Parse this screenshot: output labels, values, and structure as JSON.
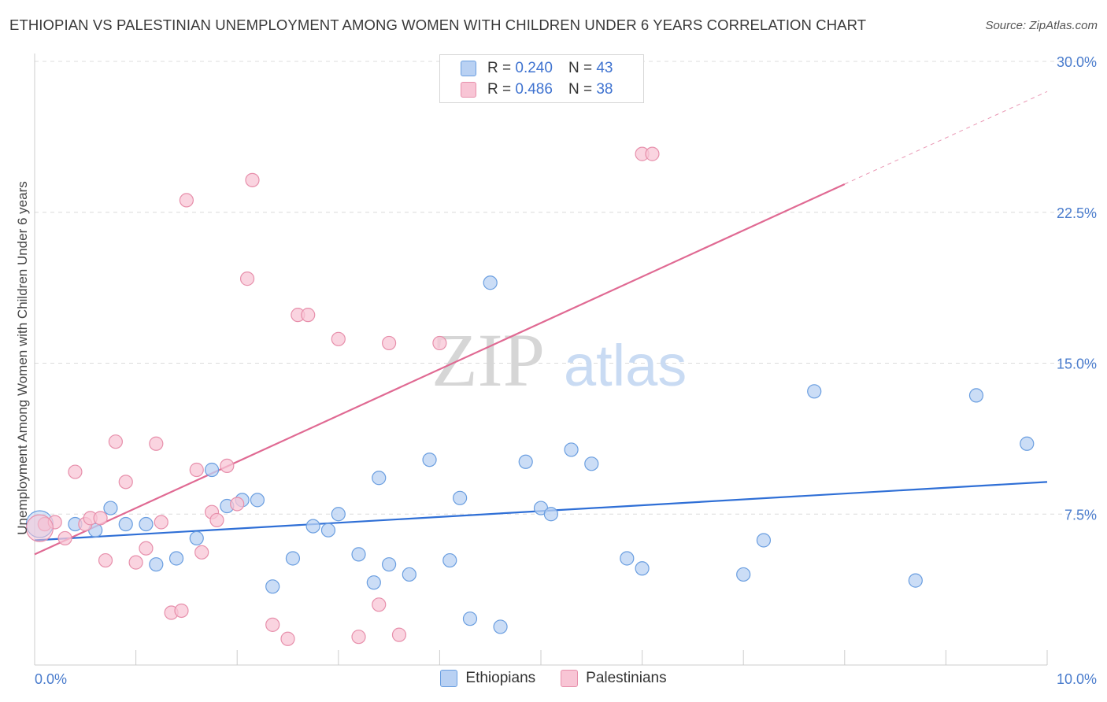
{
  "title": "ETHIOPIAN VS PALESTINIAN UNEMPLOYMENT AMONG WOMEN WITH CHILDREN UNDER 6 YEARS CORRELATION CHART",
  "source": "Source: ZipAtlas.com",
  "watermark": {
    "zip": "ZIP",
    "atlas": "atlas"
  },
  "legend": {
    "r_label": "R =",
    "n_label": "N =",
    "rows": [
      {
        "r": "0.240",
        "n": "43"
      },
      {
        "r": "0.486",
        "n": "38"
      }
    ]
  },
  "colors": {
    "blue_fill": "#b9d1f3",
    "blue_stroke": "#6a9ee0",
    "blue_line": "#2f6fd6",
    "pink_fill": "#f8c5d5",
    "pink_stroke": "#e78fab",
    "pink_line": "#e06a93"
  },
  "chart_data": {
    "type": "scatter",
    "title": "ETHIOPIAN VS PALESTINIAN UNEMPLOYMENT AMONG WOMEN WITH CHILDREN UNDER 6 YEARS CORRELATION CHART",
    "xlabel": "",
    "ylabel": "Unemployment Among Women with Children Under 6 years",
    "xlim": [
      0,
      10
    ],
    "ylim": [
      0,
      30
    ],
    "x_ticks": [
      "0.0%",
      "10.0%"
    ],
    "y_ticks": [
      "7.5%",
      "15.0%",
      "22.5%",
      "30.0%"
    ],
    "y_tick_values": [
      7.5,
      15.0,
      22.5,
      30.0
    ],
    "grid": true,
    "legend_position": "bottom",
    "series": [
      {
        "name": "Ethiopians",
        "color": "#6a9ee0",
        "trend": {
          "x0": 0.0,
          "y0": 6.2,
          "x1": 10.0,
          "y1": 9.1
        },
        "points": [
          [
            0.1,
            7.0
          ],
          [
            0.4,
            7.0
          ],
          [
            0.6,
            6.7
          ],
          [
            0.75,
            7.8
          ],
          [
            0.9,
            7.0
          ],
          [
            1.1,
            7.0
          ],
          [
            1.2,
            5.0
          ],
          [
            1.4,
            5.3
          ],
          [
            1.6,
            6.3
          ],
          [
            1.75,
            9.7
          ],
          [
            1.9,
            7.9
          ],
          [
            2.05,
            8.2
          ],
          [
            2.2,
            8.2
          ],
          [
            2.35,
            3.9
          ],
          [
            2.55,
            5.3
          ],
          [
            2.75,
            6.9
          ],
          [
            2.9,
            6.7
          ],
          [
            3.0,
            7.5
          ],
          [
            3.2,
            5.5
          ],
          [
            3.35,
            4.1
          ],
          [
            3.4,
            9.3
          ],
          [
            3.5,
            5.0
          ],
          [
            3.7,
            4.5
          ],
          [
            3.9,
            10.2
          ],
          [
            4.1,
            5.2
          ],
          [
            4.2,
            8.3
          ],
          [
            4.3,
            2.3
          ],
          [
            4.5,
            19.0
          ],
          [
            4.6,
            1.9
          ],
          [
            4.85,
            10.1
          ],
          [
            5.0,
            7.8
          ],
          [
            5.1,
            7.5
          ],
          [
            5.3,
            10.7
          ],
          [
            5.5,
            10.0
          ],
          [
            5.85,
            5.3
          ],
          [
            6.0,
            4.8
          ],
          [
            7.0,
            4.5
          ],
          [
            7.2,
            6.2
          ],
          [
            7.7,
            13.6
          ],
          [
            8.7,
            4.2
          ],
          [
            9.3,
            13.4
          ],
          [
            9.8,
            11.0
          ],
          [
            0.05,
            7.0
          ]
        ]
      },
      {
        "name": "Palestinians",
        "color": "#e78fab",
        "trend": {
          "x0": 0.0,
          "y0": 5.5,
          "x1": 8.0,
          "y1": 23.9
        },
        "trend_dashed": {
          "x0": 8.0,
          "y0": 23.9,
          "x1": 10.0,
          "y1": 28.5
        },
        "points": [
          [
            0.1,
            7.0
          ],
          [
            0.2,
            7.1
          ],
          [
            0.3,
            6.3
          ],
          [
            0.4,
            9.6
          ],
          [
            0.5,
            7.0
          ],
          [
            0.55,
            7.3
          ],
          [
            0.65,
            7.3
          ],
          [
            0.7,
            5.2
          ],
          [
            0.8,
            11.1
          ],
          [
            0.9,
            9.1
          ],
          [
            1.0,
            5.1
          ],
          [
            1.1,
            5.8
          ],
          [
            1.2,
            11.0
          ],
          [
            1.25,
            7.1
          ],
          [
            1.35,
            2.6
          ],
          [
            1.45,
            2.7
          ],
          [
            1.5,
            23.1
          ],
          [
            1.6,
            9.7
          ],
          [
            1.65,
            5.6
          ],
          [
            1.75,
            7.6
          ],
          [
            1.8,
            7.2
          ],
          [
            1.9,
            9.9
          ],
          [
            2.0,
            8.0
          ],
          [
            2.1,
            19.2
          ],
          [
            2.15,
            24.1
          ],
          [
            2.35,
            2.0
          ],
          [
            2.5,
            1.3
          ],
          [
            2.6,
            17.4
          ],
          [
            2.7,
            17.4
          ],
          [
            3.0,
            16.2
          ],
          [
            3.2,
            1.4
          ],
          [
            3.4,
            3.0
          ],
          [
            3.5,
            16.0
          ],
          [
            3.6,
            1.5
          ],
          [
            4.0,
            16.0
          ],
          [
            6.0,
            25.4
          ],
          [
            6.1,
            25.4
          ],
          [
            0.05,
            6.8
          ]
        ]
      }
    ]
  },
  "bottom_legend": [
    "Ethiopians",
    "Palestinians"
  ]
}
